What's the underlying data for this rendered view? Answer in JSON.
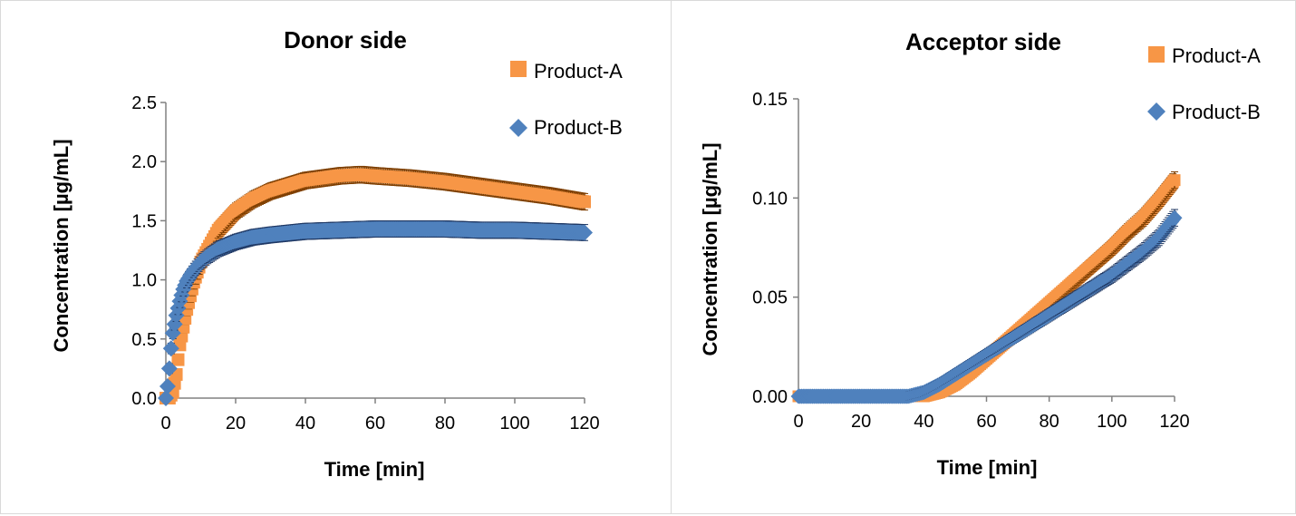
{
  "chart_data": [
    {
      "type": "scatter",
      "title": "Donor side",
      "xlabel": "Time [min]",
      "ylabel": "Concentration [µg/mL]",
      "xlim": [
        0,
        120
      ],
      "ylim": [
        0,
        2.5
      ],
      "xticks": [
        0,
        20,
        40,
        60,
        80,
        100,
        120
      ],
      "yticks": [
        "0.0",
        "0.5",
        "1.0",
        "1.5",
        "2.0",
        "2.5"
      ],
      "grid": false,
      "legend_position": "top-right",
      "series": [
        {
          "name": "Product-A",
          "marker": "square",
          "color": "#F79646",
          "error_color": "#7f3f00",
          "x": [
            0,
            1,
            2,
            3,
            4,
            6,
            8,
            10,
            15,
            20,
            25,
            30,
            40,
            50,
            56,
            60,
            70,
            80,
            90,
            100,
            110,
            120
          ],
          "y": [
            0,
            0.0,
            0.05,
            0.2,
            0.45,
            0.75,
            0.98,
            1.15,
            1.42,
            1.58,
            1.68,
            1.75,
            1.84,
            1.88,
            1.89,
            1.88,
            1.86,
            1.83,
            1.79,
            1.75,
            1.71,
            1.66
          ]
        },
        {
          "name": "Product-B",
          "marker": "diamond",
          "color": "#4F81BD",
          "error_color": "#1f3864",
          "x": [
            0,
            0.5,
            1,
            1.5,
            2,
            3,
            4,
            5,
            6,
            8,
            10,
            12,
            15,
            20,
            25,
            30,
            40,
            50,
            60,
            70,
            80,
            90,
            100,
            110,
            120
          ],
          "y": [
            0,
            0.1,
            0.25,
            0.42,
            0.55,
            0.7,
            0.82,
            0.92,
            0.99,
            1.08,
            1.15,
            1.2,
            1.26,
            1.32,
            1.36,
            1.38,
            1.41,
            1.42,
            1.43,
            1.43,
            1.43,
            1.42,
            1.42,
            1.41,
            1.4
          ]
        }
      ]
    },
    {
      "type": "scatter",
      "title": "Acceptor side",
      "xlabel": "Time [min]",
      "ylabel": "Concentration [µg/mL]",
      "xlim": [
        0,
        120
      ],
      "ylim": [
        0,
        0.15
      ],
      "xticks": [
        0,
        20,
        40,
        60,
        80,
        100,
        120
      ],
      "yticks": [
        "0.00",
        "0.05",
        "0.10",
        "0.15"
      ],
      "grid": false,
      "legend_position": "top-right",
      "series": [
        {
          "name": "Product-A",
          "marker": "square",
          "color": "#F79646",
          "error_color": "#7f3f00",
          "x": [
            0,
            10,
            20,
            30,
            35,
            40,
            45,
            50,
            55,
            60,
            65,
            70,
            75,
            80,
            85,
            90,
            95,
            100,
            105,
            110,
            115,
            120
          ],
          "y": [
            0,
            0,
            0,
            0,
            0,
            0.0,
            0.002,
            0.006,
            0.012,
            0.019,
            0.026,
            0.033,
            0.04,
            0.047,
            0.054,
            0.061,
            0.068,
            0.075,
            0.083,
            0.09,
            0.099,
            0.109
          ]
        },
        {
          "name": "Product-B",
          "marker": "diamond",
          "color": "#4F81BD",
          "error_color": "#1f3864",
          "x": [
            0,
            10,
            20,
            30,
            35,
            40,
            45,
            50,
            55,
            60,
            65,
            70,
            75,
            80,
            85,
            90,
            95,
            100,
            105,
            110,
            115,
            120
          ],
          "y": [
            0,
            0,
            0,
            0,
            0,
            0.002,
            0.006,
            0.011,
            0.016,
            0.021,
            0.026,
            0.031,
            0.036,
            0.041,
            0.046,
            0.051,
            0.056,
            0.061,
            0.067,
            0.073,
            0.08,
            0.09
          ]
        }
      ]
    }
  ]
}
